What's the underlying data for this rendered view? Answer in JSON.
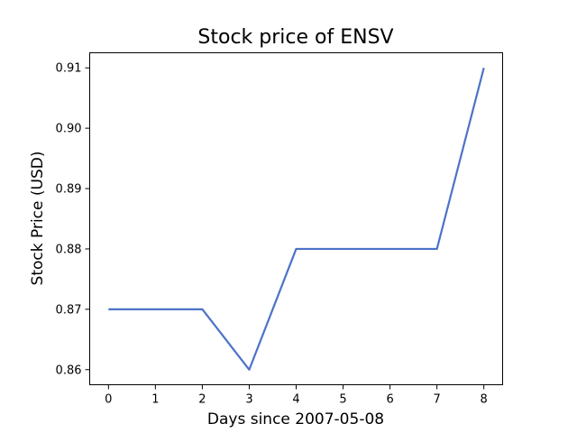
{
  "chart_data": {
    "type": "line",
    "title": "Stock price of ENSV",
    "xlabel": "Days since 2007-05-08",
    "ylabel": "Stock Price (USD)",
    "x": [
      0,
      1,
      2,
      3,
      4,
      5,
      6,
      7,
      8
    ],
    "series": [
      {
        "values": [
          0.87,
          0.87,
          0.87,
          0.86,
          0.88,
          0.88,
          0.88,
          0.88,
          0.91
        ],
        "color": "#4c72c8"
      }
    ],
    "xlim": [
      -0.4,
      8.4
    ],
    "ylim": [
      0.8575,
      0.9125
    ],
    "xticks": [
      0,
      1,
      2,
      3,
      4,
      5,
      6,
      7,
      8
    ],
    "xtick_labels": [
      "0",
      "1",
      "2",
      "3",
      "4",
      "5",
      "6",
      "7",
      "8"
    ],
    "yticks": [
      0.86,
      0.87,
      0.88,
      0.89,
      0.9,
      0.91
    ],
    "ytick_labels": [
      "0.86",
      "0.87",
      "0.88",
      "0.89",
      "0.90",
      "0.91"
    ],
    "grid": false,
    "legend": "none"
  }
}
